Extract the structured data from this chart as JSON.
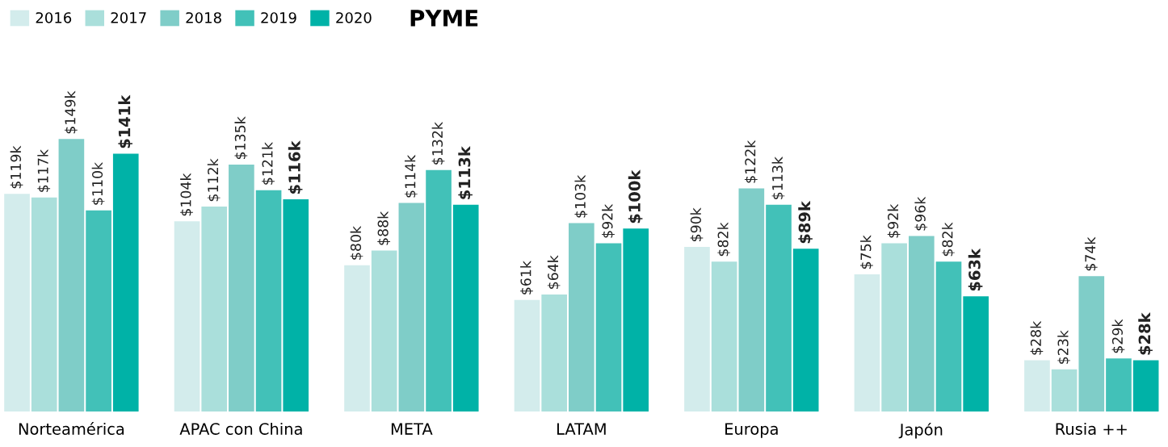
{
  "chart_data": {
    "type": "bar",
    "title": "PYME",
    "categories": [
      "Norteamérica",
      "APAC con China",
      "META",
      "LATAM",
      "Europa",
      "Japón",
      "Rusia ++"
    ],
    "series": [
      {
        "name": "2016",
        "color": "#d3ecec",
        "values": [
          119,
          104,
          80,
          61,
          90,
          75,
          28
        ],
        "value_labels": [
          "$119k",
          "$104k",
          "$80k",
          "$61k",
          "$90k",
          "$75k",
          "$28k"
        ]
      },
      {
        "name": "2017",
        "color": "#aadfdb",
        "values": [
          117,
          112,
          88,
          64,
          82,
          92,
          23
        ],
        "value_labels": [
          "$117k",
          "$112k",
          "$88k",
          "$64k",
          "$82k",
          "$92k",
          "$23k"
        ]
      },
      {
        "name": "2018",
        "color": "#7fcdc8",
        "values": [
          149,
          135,
          114,
          103,
          122,
          96,
          74
        ],
        "value_labels": [
          "$149k",
          "$135k",
          "$114k",
          "$103k",
          "$122k",
          "$96k",
          "$74k"
        ]
      },
      {
        "name": "2019",
        "color": "#42c1b8",
        "values": [
          110,
          121,
          132,
          92,
          113,
          82,
          29
        ],
        "value_labels": [
          "$110k",
          "$121k",
          "$132k",
          "$92k",
          "$113k",
          "$82k",
          "$29k"
        ]
      },
      {
        "name": "2020",
        "color": "#00b2a7",
        "values": [
          141,
          116,
          113,
          100,
          89,
          63,
          28
        ],
        "value_labels": [
          "$141k",
          "$116k",
          "$113k",
          "$100k",
          "$89k",
          "$63k",
          "$28k"
        ]
      }
    ],
    "legend": "top left",
    "grid": false
  }
}
